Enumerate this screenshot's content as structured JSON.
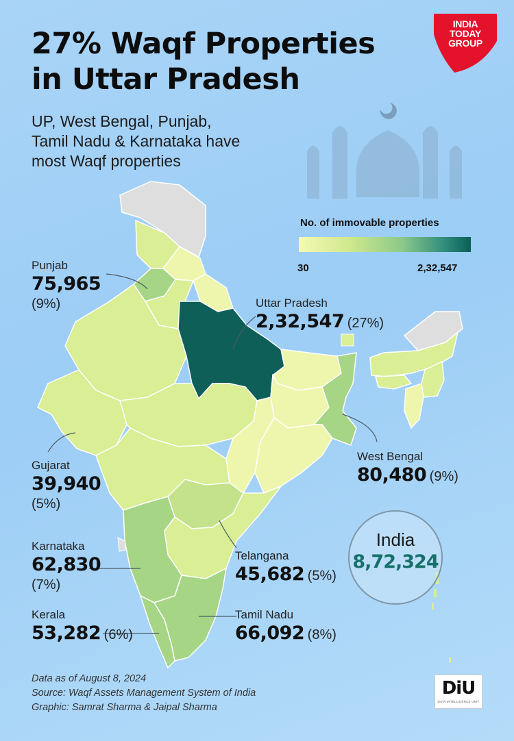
{
  "header": {
    "title_line1": "27% Waqf Properties",
    "title_line2": "in Uttar Pradesh",
    "subtitle_line1": "UP, West Bengal, Punjab,",
    "subtitle_line2": "Tamil Nadu & Karnataka have",
    "subtitle_line3": "most Waqf properties"
  },
  "brand": {
    "logo_line1": "INDIA",
    "logo_line2": "TODAY",
    "logo_line3": "GROUP",
    "logo_color": "#e5122c",
    "diu_label": "DiU",
    "diu_sub": "DATA INTELLIGENCE UNIT"
  },
  "legend": {
    "title": "No. of immovable properties",
    "min_label": "30",
    "max_label": "2,32,547",
    "color_low": "#f4f9b4",
    "color_high": "#0b5f58"
  },
  "states": {
    "punjab": {
      "name": "Punjab",
      "value": "75,965",
      "share": "(9%)"
    },
    "uttar_pradesh": {
      "name": "Uttar Pradesh",
      "value": "2,32,547",
      "share": "(27%)"
    },
    "gujarat": {
      "name": "Gujarat",
      "value": "39,940",
      "share": "(5%)"
    },
    "west_bengal": {
      "name": "West Bengal",
      "value": "80,480",
      "share": "(9%)"
    },
    "karnataka": {
      "name": "Karnataka",
      "value": "62,830",
      "share": "(7%)"
    },
    "telangana": {
      "name": "Telangana",
      "value": "45,682",
      "share": "(5%)"
    },
    "kerala": {
      "name": "Kerala",
      "value": "53,282",
      "share": "(6%)"
    },
    "tamil_nadu": {
      "name": "Tamil Nadu",
      "value": "66,092",
      "share": "(8%)"
    }
  },
  "total": {
    "label": "India",
    "value": "8,72,324"
  },
  "footer": {
    "line1": "Data as of August 8, 2024",
    "line2": "Source: Waqf Assets Management System of India",
    "line3": "Graphic: Samrat Sharma & Jaipal Sharma"
  },
  "fill_colors": {
    "very_low": "#eef6ad",
    "low": "#d9ee95",
    "mid_low": "#c3e28b",
    "mid": "#a6d585",
    "max": "#0d5f58",
    "no_data": "#dedede"
  }
}
